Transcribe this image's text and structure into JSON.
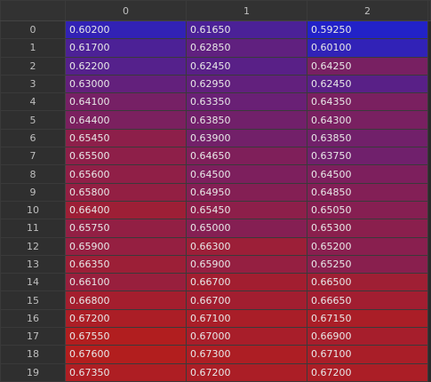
{
  "table": {
    "corner": "",
    "columns": [
      "0",
      "1",
      "2"
    ],
    "rows": [
      {
        "index": "0",
        "values": [
          "0.60200",
          "0.61650",
          "0.59250"
        ]
      },
      {
        "index": "1",
        "values": [
          "0.61700",
          "0.62850",
          "0.60100"
        ]
      },
      {
        "index": "2",
        "values": [
          "0.62200",
          "0.62450",
          "0.64250"
        ]
      },
      {
        "index": "3",
        "values": [
          "0.63000",
          "0.62950",
          "0.62450"
        ]
      },
      {
        "index": "4",
        "values": [
          "0.64100",
          "0.63350",
          "0.64350"
        ]
      },
      {
        "index": "5",
        "values": [
          "0.64400",
          "0.63850",
          "0.64300"
        ]
      },
      {
        "index": "6",
        "values": [
          "0.65450",
          "0.63900",
          "0.63850"
        ]
      },
      {
        "index": "7",
        "values": [
          "0.65500",
          "0.64650",
          "0.63750"
        ]
      },
      {
        "index": "8",
        "values": [
          "0.65600",
          "0.64500",
          "0.64500"
        ]
      },
      {
        "index": "9",
        "values": [
          "0.65800",
          "0.64950",
          "0.64850"
        ]
      },
      {
        "index": "10",
        "values": [
          "0.66400",
          "0.65450",
          "0.65050"
        ]
      },
      {
        "index": "11",
        "values": [
          "0.65750",
          "0.65000",
          "0.65300"
        ]
      },
      {
        "index": "12",
        "values": [
          "0.65900",
          "0.66300",
          "0.65200"
        ]
      },
      {
        "index": "13",
        "values": [
          "0.66350",
          "0.65900",
          "0.65250"
        ]
      },
      {
        "index": "14",
        "values": [
          "0.66100",
          "0.66700",
          "0.66500"
        ]
      },
      {
        "index": "15",
        "values": [
          "0.66800",
          "0.66700",
          "0.66650"
        ]
      },
      {
        "index": "16",
        "values": [
          "0.67200",
          "0.67100",
          "0.67150"
        ]
      },
      {
        "index": "17",
        "values": [
          "0.67550",
          "0.67000",
          "0.66900"
        ]
      },
      {
        "index": "18",
        "values": [
          "0.67600",
          "0.67300",
          "0.67100"
        ]
      },
      {
        "index": "19",
        "values": [
          "0.67350",
          "0.67200",
          "0.67200"
        ]
      }
    ],
    "colormap": {
      "min": 0.5925,
      "max": 0.676,
      "low_color": "#2222c8",
      "high_color": "#b21e1e"
    }
  }
}
